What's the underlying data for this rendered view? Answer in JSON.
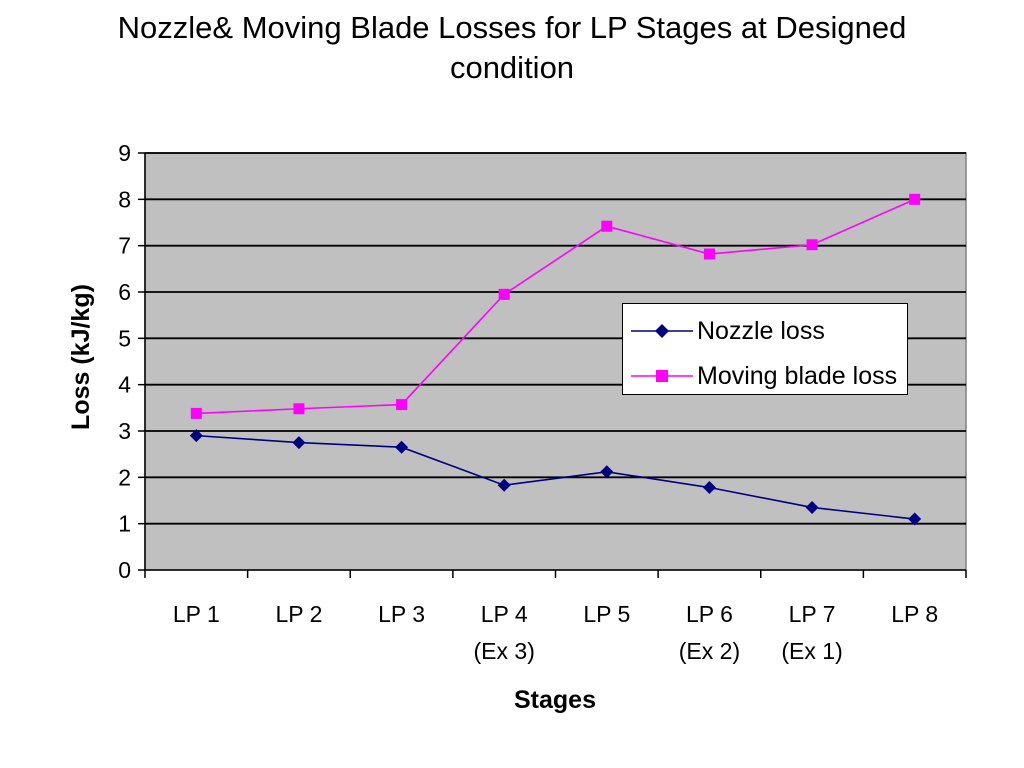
{
  "chart_data": {
    "type": "line",
    "title_lines": [
      "Nozzle& Moving Blade Losses for LP Stages at Designed",
      "condition"
    ],
    "xlabel": "Stages",
    "ylabel": "Loss (kJ/kg)",
    "categories": [
      [
        "LP 1"
      ],
      [
        "LP 2"
      ],
      [
        "LP 3"
      ],
      [
        "LP 4",
        "(Ex 3)"
      ],
      [
        "LP 5"
      ],
      [
        "LP 6",
        "(Ex 2)"
      ],
      [
        "LP 7",
        "(Ex 1)"
      ],
      [
        "LP 8"
      ]
    ],
    "ylim": [
      0,
      9
    ],
    "yticks": [
      0,
      1,
      2,
      3,
      4,
      5,
      6,
      7,
      8,
      9
    ],
    "grid": true,
    "legend_position": "right-center",
    "plot_background": "#c0c0c0",
    "series": [
      {
        "name": "Nozzle loss",
        "color": "#000080",
        "marker": "diamond",
        "values": [
          2.9,
          2.75,
          2.65,
          1.83,
          2.12,
          1.78,
          1.35,
          1.1
        ]
      },
      {
        "name": "Moving blade loss",
        "color": "#ff00ff",
        "marker": "square",
        "values": [
          3.38,
          3.48,
          3.57,
          5.95,
          7.42,
          6.82,
          7.02,
          8.0
        ]
      }
    ]
  }
}
